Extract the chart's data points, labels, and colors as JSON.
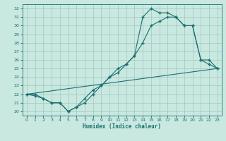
{
  "xlabel": "Humidex (Indice chaleur)",
  "xlim": [
    -0.5,
    23.5
  ],
  "ylim": [
    19.5,
    32.5
  ],
  "xticks": [
    0,
    1,
    2,
    3,
    4,
    5,
    6,
    7,
    8,
    9,
    10,
    11,
    12,
    13,
    14,
    15,
    16,
    17,
    18,
    19,
    20,
    21,
    22,
    23
  ],
  "yticks": [
    20,
    21,
    22,
    23,
    24,
    25,
    26,
    27,
    28,
    29,
    30,
    31,
    32
  ],
  "background_color": "#c8e8e0",
  "grid_color": "#a0c8c0",
  "line_color": "#1a7070",
  "curve1": {
    "x": [
      0,
      1,
      2,
      3,
      4,
      5,
      6,
      7,
      8,
      9,
      10,
      11,
      12,
      13,
      14,
      15,
      16,
      17,
      18,
      19,
      20,
      21,
      22,
      23
    ],
    "y": [
      22,
      21.8,
      21.5,
      21,
      21,
      20,
      20.5,
      21.5,
      22.5,
      23,
      24,
      24.5,
      25.5,
      26.5,
      28,
      30,
      30.5,
      31,
      31,
      30,
      30,
      26,
      26,
      25
    ]
  },
  "curve2": {
    "x": [
      0,
      1,
      2,
      3,
      4,
      5,
      6,
      7,
      8,
      9,
      10,
      11,
      12,
      13,
      14,
      15,
      16,
      17,
      18,
      19,
      20,
      21,
      22,
      23
    ],
    "y": [
      22,
      22,
      21.5,
      21,
      21,
      20,
      20.5,
      21,
      22,
      23,
      24,
      25,
      25.5,
      26.5,
      31,
      32,
      31.5,
      31.5,
      31,
      30,
      30,
      26,
      25.5,
      25
    ]
  },
  "curve3": {
    "x": [
      0,
      23
    ],
    "y": [
      22,
      25
    ]
  }
}
